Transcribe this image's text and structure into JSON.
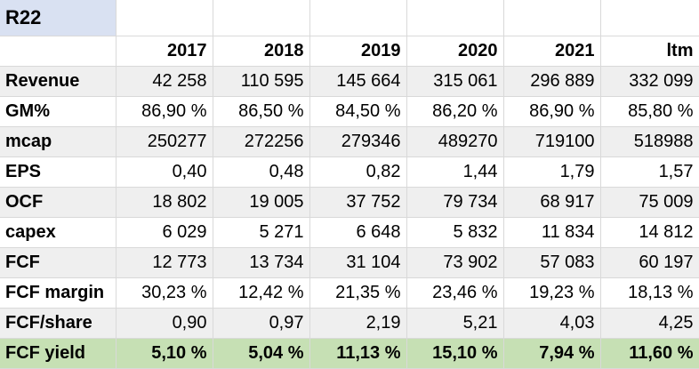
{
  "sheet": {
    "title": "R22",
    "headers": [
      "2017",
      "2018",
      "2019",
      "2020",
      "2021",
      "ltm"
    ],
    "rows": [
      {
        "label": "Revenue",
        "values": [
          "42 258",
          "110 595",
          "145 664",
          "315 061",
          "296 889",
          "332 099"
        ]
      },
      {
        "label": "GM%",
        "values": [
          "86,90 %",
          "86,50 %",
          "84,50 %",
          "86,20 %",
          "86,90 %",
          "85,80 %"
        ]
      },
      {
        "label": "mcap",
        "values": [
          "250277",
          "272256",
          "279346",
          "489270",
          "719100",
          "518988"
        ]
      },
      {
        "label": "EPS",
        "values": [
          "0,40",
          "0,48",
          "0,82",
          "1,44",
          "1,79",
          "1,57"
        ]
      },
      {
        "label": "OCF",
        "values": [
          "18 802",
          "19 005",
          "37 752",
          "79 734",
          "68 917",
          "75 009"
        ]
      },
      {
        "label": "capex",
        "values": [
          "6 029",
          "5 271",
          "6 648",
          "5 832",
          "11 834",
          "14 812"
        ]
      },
      {
        "label": "FCF",
        "values": [
          "12 773",
          "13 734",
          "31 104",
          "73 902",
          "57 083",
          "60 197"
        ]
      },
      {
        "label": "FCF margin",
        "values": [
          "30,23 %",
          "12,42 %",
          "21,35 %",
          "23,46 %",
          "19,23 %",
          "18,13 %"
        ]
      },
      {
        "label": "FCF/share",
        "values": [
          "0,90",
          "0,97",
          "2,19",
          "5,21",
          "4,03",
          "4,25"
        ]
      },
      {
        "label": "FCF yield",
        "values": [
          "5,10 %",
          "5,04 %",
          "11,13 %",
          "15,10 %",
          "7,94 %",
          "11,60 %"
        ]
      }
    ],
    "colors": {
      "title_bg": "#d9e1f2",
      "shade_bg": "#efefef",
      "highlight_bg": "#c6e0b4",
      "gridline": "#d9d9d9"
    }
  }
}
